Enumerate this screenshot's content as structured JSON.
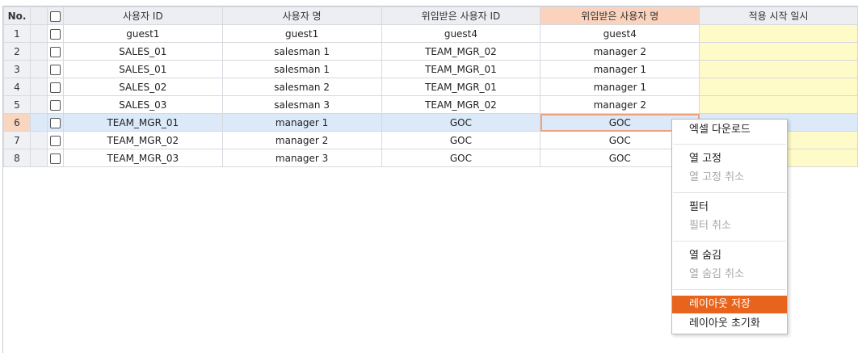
{
  "grid": {
    "headers": {
      "no": "No.",
      "user_id": "사용자 ID",
      "user_name": "사용자 명",
      "delegated_id": "위임받은 사용자 ID",
      "delegated_name": "위임받은 사용자 명",
      "start_date": "적용 시작 일시"
    },
    "rows": [
      {
        "no": "1",
        "user_id": "guest1",
        "user_name": "guest1",
        "delegated_id": "guest4",
        "delegated_name": "guest4"
      },
      {
        "no": "2",
        "user_id": "SALES_01",
        "user_name": "salesman 1",
        "delegated_id": "TEAM_MGR_02",
        "delegated_name": "manager 2"
      },
      {
        "no": "3",
        "user_id": "SALES_01",
        "user_name": "salesman 1",
        "delegated_id": "TEAM_MGR_01",
        "delegated_name": "manager 1"
      },
      {
        "no": "4",
        "user_id": "SALES_02",
        "user_name": "salesman 2",
        "delegated_id": "TEAM_MGR_01",
        "delegated_name": "manager 1"
      },
      {
        "no": "5",
        "user_id": "SALES_03",
        "user_name": "salesman 3",
        "delegated_id": "TEAM_MGR_02",
        "delegated_name": "manager 2"
      },
      {
        "no": "6",
        "user_id": "TEAM_MGR_01",
        "user_name": "manager 1",
        "delegated_id": "GOC",
        "delegated_name": "GOC"
      },
      {
        "no": "7",
        "user_id": "TEAM_MGR_02",
        "user_name": "manager 2",
        "delegated_id": "GOC",
        "delegated_name": "GOC"
      },
      {
        "no": "8",
        "user_id": "TEAM_MGR_03",
        "user_name": "manager 3",
        "delegated_id": "GOC",
        "delegated_name": "GOC"
      }
    ],
    "selected_row": "6",
    "highlighted_column": "위임받은 사용자 명"
  },
  "context_menu": {
    "items": {
      "excel_download": "엑셀 다운로드",
      "freeze_column": "열 고정",
      "unfreeze_column": "열 고정 취소",
      "filter": "필터",
      "clear_filter": "필터 취소",
      "hide_column": "열 숨김",
      "unhide_column": "열 숨김 취소",
      "save_layout": "레이아웃 저장",
      "reset_layout": "레이아웃 초기화"
    },
    "disabled": [
      "열 고정 취소",
      "필터 취소",
      "열 숨김 취소"
    ],
    "active": "레이아웃 저장"
  },
  "colors": {
    "header_bg": "#eceef2",
    "highlight_header_bg": "#fbd3bd",
    "selected_row_bg": "#dbe9f8",
    "date_column_bg": "#fffbc8",
    "menu_active_bg": "#e8631b"
  }
}
